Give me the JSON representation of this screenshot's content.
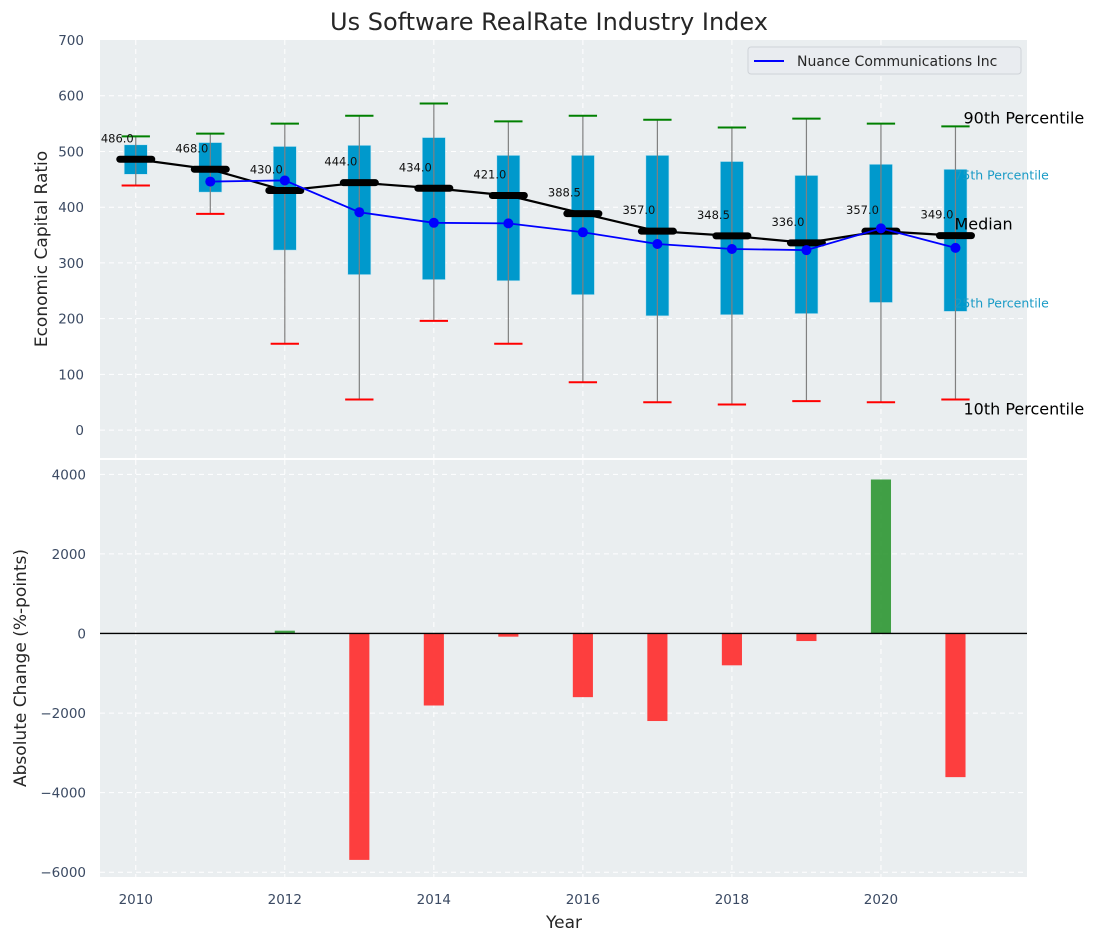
{
  "chart_data": [
    {
      "type": "box",
      "panel": "top",
      "title": "Us Software RealRate Industry Index",
      "xlabel": "",
      "ylabel": "Economic Capital Ratio",
      "ylim": [
        -50,
        700
      ],
      "xlim": [
        2009.52,
        2021.96
      ],
      "yticks": [
        0,
        100,
        200,
        300,
        400,
        500,
        600,
        700
      ],
      "grid": true,
      "legend": {
        "position": "top-right",
        "entries": [
          {
            "label": "Nuance Communications Inc",
            "color": "#0000ff"
          }
        ]
      },
      "years": [
        2010,
        2011,
        2012,
        2013,
        2014,
        2015,
        2016,
        2017,
        2018,
        2019,
        2020,
        2021
      ],
      "p10": [
        439,
        388,
        155,
        55,
        196,
        155,
        86,
        50,
        46,
        52,
        50,
        55
      ],
      "p25": [
        459,
        427,
        323,
        279,
        270,
        268,
        243,
        205,
        207,
        209,
        229,
        213
      ],
      "median": [
        486.0,
        468.0,
        430.0,
        444.0,
        434.0,
        421.0,
        388.5,
        357.0,
        348.5,
        336.0,
        357.0,
        349.0
      ],
      "median_labels": [
        "486.0",
        "468.0",
        "430.0",
        "444.0",
        "434.0",
        "421.0",
        "388.5",
        "357.0",
        "348.5",
        "336.0",
        "357.0",
        "349.0"
      ],
      "p75": [
        512,
        516,
        509,
        511,
        525,
        493,
        493,
        493,
        482,
        457,
        477,
        468
      ],
      "p90": [
        527,
        532,
        550,
        564,
        586,
        554,
        564,
        557,
        543,
        559,
        550,
        545
      ],
      "company": {
        "name": "Nuance Communications Inc",
        "years": [
          2011,
          2012,
          2013,
          2014,
          2015,
          2016,
          2017,
          2018,
          2019,
          2020,
          2021
        ],
        "values": [
          446,
          448,
          391,
          372,
          371,
          355,
          334,
          325,
          323,
          362,
          327
        ]
      },
      "annotations": [
        {
          "text": "90th Percentile",
          "anchor": "p90"
        },
        {
          "text": "75th Percentile",
          "anchor": "p75"
        },
        {
          "text": "Median",
          "anchor": "median"
        },
        {
          "text": "25th Percentile",
          "anchor": "p25"
        },
        {
          "text": "10th Percentile",
          "anchor": "p10"
        }
      ],
      "colors": {
        "box": "#0099cc",
        "median": "#000000",
        "company": "#0000ff",
        "p90_cap": "#008000",
        "p10_cap": "#ff0000",
        "whisker": "#808080"
      }
    },
    {
      "type": "bar",
      "panel": "bottom",
      "xlabel": "Year",
      "ylabel": "Absolute Change (%-points)",
      "ylim": [
        -6120,
        4360
      ],
      "xlim": [
        2009.52,
        2021.96
      ],
      "yticks": [
        -6000,
        -4000,
        -2000,
        0,
        2000,
        4000
      ],
      "ytick_labels": [
        "−6000",
        "−4000",
        "−2000",
        "0",
        "2000",
        "4000"
      ],
      "xticks": [
        2010,
        2012,
        2014,
        2016,
        2018,
        2020
      ],
      "grid": true,
      "categories": [
        2012,
        2013,
        2014,
        2015,
        2016,
        2017,
        2018,
        2019,
        2020,
        2021
      ],
      "values": [
        70,
        -5690,
        -1810,
        -80,
        -1600,
        -2200,
        -800,
        -190,
        3870,
        -3610
      ],
      "colors": {
        "positive": "#2e9632",
        "negative": "#ff2a2a",
        "zero_line": "#000000"
      }
    }
  ]
}
